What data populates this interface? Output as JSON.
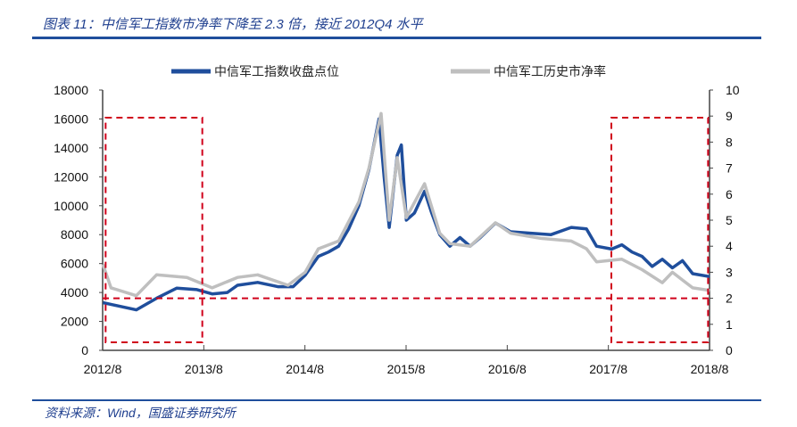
{
  "title": "图表 11：中信军工指数市净率下降至 2.3 倍，接近 2012Q4 水平",
  "source": "资料来源：Wind，国盛证券研究所",
  "chart_data": {
    "type": "line",
    "title": "图表 11：中信军工指数市净率下降至 2.3 倍，接近 2012Q4 水平",
    "legend_position": "top",
    "x_ticks": [
      "2012/8",
      "2013/8",
      "2014/8",
      "2015/8",
      "2016/8",
      "2017/8",
      "2018/8"
    ],
    "xlim": [
      2012.667,
      2018.667
    ],
    "y_left": {
      "lim": [
        0,
        18000
      ],
      "ticks": [
        "0",
        "2000",
        "4000",
        "6000",
        "8000",
        "10000",
        "12000",
        "14000",
        "16000",
        "18000"
      ]
    },
    "y_right": {
      "lim": [
        0,
        10
      ],
      "ticks": [
        "0",
        "1",
        "2",
        "3",
        "4",
        "5",
        "6",
        "7",
        "8",
        "9",
        "10"
      ]
    },
    "series": [
      {
        "name": "中信军工指数收盘点位",
        "axis": "left",
        "color": "#1f4e9c",
        "x": [
          2012.67,
          2012.8,
          2013.0,
          2013.2,
          2013.4,
          2013.6,
          2013.75,
          2013.9,
          2014.0,
          2014.2,
          2014.4,
          2014.55,
          2014.67,
          2014.8,
          2014.9,
          2015.0,
          2015.1,
          2015.2,
          2015.3,
          2015.4,
          2015.45,
          2015.5,
          2015.58,
          2015.62,
          2015.67,
          2015.75,
          2015.85,
          2015.92,
          2016.0,
          2016.1,
          2016.2,
          2016.3,
          2016.4,
          2016.55,
          2016.7,
          2016.9,
          2017.1,
          2017.3,
          2017.45,
          2017.55,
          2017.7,
          2017.8,
          2017.9,
          2018.0,
          2018.1,
          2018.2,
          2018.3,
          2018.4,
          2018.5,
          2018.67
        ],
        "values": [
          3300,
          3100,
          2800,
          3600,
          4300,
          4200,
          3900,
          4000,
          4500,
          4700,
          4400,
          4400,
          5200,
          6500,
          6800,
          7200,
          8400,
          10000,
          12500,
          16000,
          12000,
          8500,
          13500,
          14200,
          9000,
          9500,
          11000,
          9500,
          8000,
          7200,
          7800,
          7200,
          7800,
          8800,
          8200,
          8100,
          8000,
          8500,
          8400,
          7200,
          7000,
          7300,
          6800,
          6500,
          5800,
          6300,
          5700,
          6200,
          5300,
          5100
        ]
      },
      {
        "name": "中信军工历史市净率",
        "axis": "right",
        "color": "#bfbfbf",
        "x": [
          2012.67,
          2012.75,
          2013.0,
          2013.2,
          2013.5,
          2013.75,
          2014.0,
          2014.2,
          2014.5,
          2014.67,
          2014.8,
          2015.0,
          2015.2,
          2015.3,
          2015.42,
          2015.5,
          2015.58,
          2015.67,
          2015.85,
          2016.0,
          2016.1,
          2016.3,
          2016.55,
          2016.7,
          2017.0,
          2017.3,
          2017.45,
          2017.55,
          2017.8,
          2018.0,
          2018.2,
          2018.3,
          2018.5,
          2018.67
        ],
        "values": [
          3.3,
          2.4,
          2.1,
          2.9,
          2.8,
          2.4,
          2.8,
          2.9,
          2.5,
          3.0,
          3.9,
          4.2,
          5.7,
          7.0,
          9.1,
          5.0,
          7.4,
          5.1,
          6.4,
          4.5,
          4.1,
          4.0,
          4.9,
          4.5,
          4.3,
          4.2,
          3.9,
          3.4,
          3.5,
          3.1,
          2.6,
          3.0,
          2.4,
          2.3
        ]
      }
    ],
    "annotations": {
      "reference_line_right_axis": 2,
      "highlight_boxes": [
        [
          2012.67,
          2013.67
        ],
        [
          2017.67,
          2018.67
        ]
      ]
    }
  }
}
